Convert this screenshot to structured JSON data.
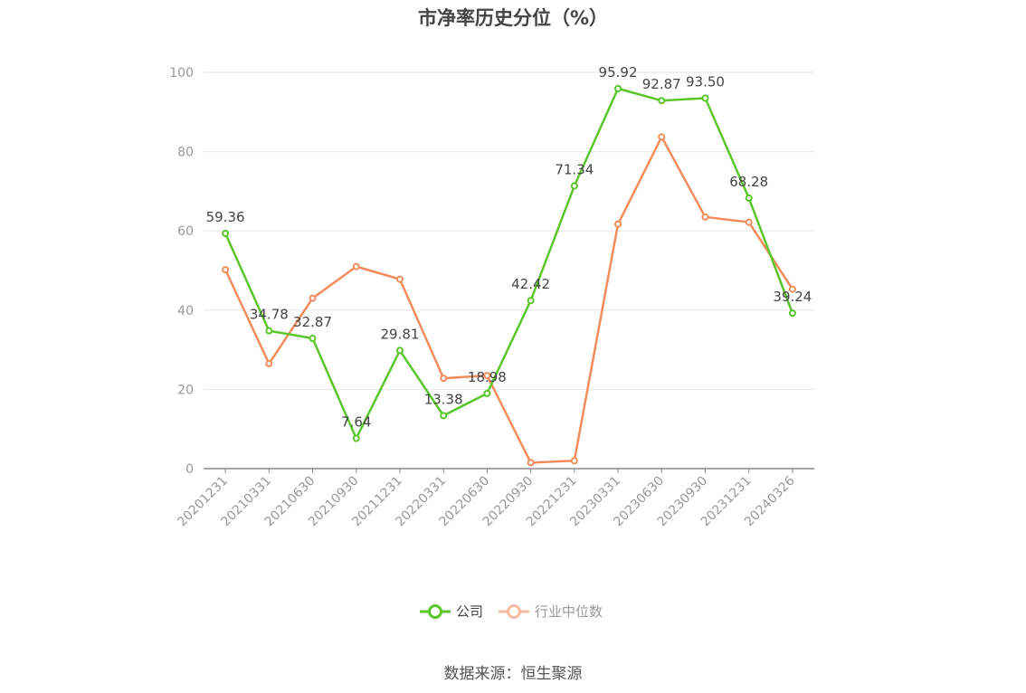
{
  "chart_data": {
    "type": "line",
    "title": "市净率历史分位（%）",
    "categories": [
      "20201231",
      "20210331",
      "20210630",
      "20210930",
      "20211231",
      "20220331",
      "20220630",
      "20220930",
      "20221231",
      "20230331",
      "20230630",
      "20230930",
      "20231231",
      "20240326"
    ],
    "series": [
      {
        "name": "公司",
        "color": "#5ac62a",
        "values": [
          59.36,
          34.78,
          32.87,
          7.64,
          29.81,
          13.38,
          18.98,
          42.42,
          71.34,
          95.92,
          92.87,
          93.5,
          68.28,
          39.24
        ],
        "labels": [
          "59.36",
          "34.78",
          "32.87",
          "7.64",
          "29.81",
          "13.38",
          "18.98",
          "42.42",
          "71.34",
          "95.92",
          "92.87",
          "93.50",
          "68.28",
          "39.24"
        ]
      },
      {
        "name": "行业中位数",
        "color": "#f28c5c",
        "values": [
          50.2,
          26.5,
          43.0,
          51.0,
          47.8,
          22.8,
          23.5,
          1.5,
          2.0,
          61.7,
          83.7,
          63.5,
          62.2,
          45.3
        ]
      }
    ],
    "ylim": [
      0,
      100
    ],
    "yticks": [
      0,
      20,
      40,
      60,
      80,
      100
    ],
    "grid": true,
    "legend": "bottom-center"
  },
  "source": "数据来源：恒生聚源"
}
